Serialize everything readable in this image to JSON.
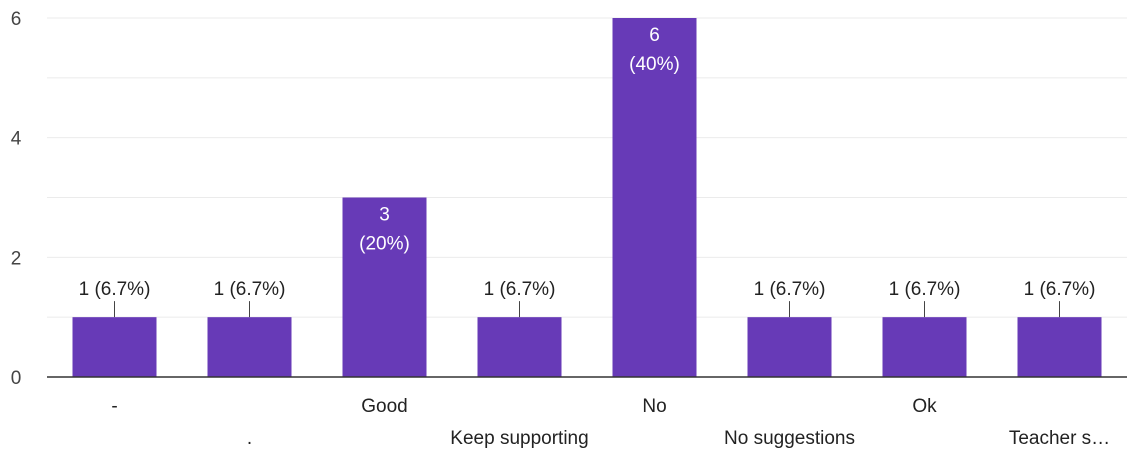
{
  "chart_data": {
    "type": "bar",
    "categories": [
      "-",
      ".",
      "Good",
      "Keep supporting",
      "No",
      "No suggestions",
      "Ok",
      "Teacher s…"
    ],
    "values": [
      1,
      1,
      3,
      1,
      6,
      1,
      1,
      1
    ],
    "data_labels": [
      "1 (6.7%)",
      "1 (6.7%)",
      "3\n(20%)",
      "1 (6.7%)",
      "6\n(40%)",
      "1 (6.7%)",
      "1 (6.7%)",
      "1 (6.7%)"
    ],
    "ylim": [
      0,
      6
    ],
    "yticks": [
      0,
      2,
      4,
      6
    ],
    "grid": true,
    "bar_color": "#673ab7",
    "label_inside_color": "#ffffff",
    "label_outside_color": "#222222"
  }
}
